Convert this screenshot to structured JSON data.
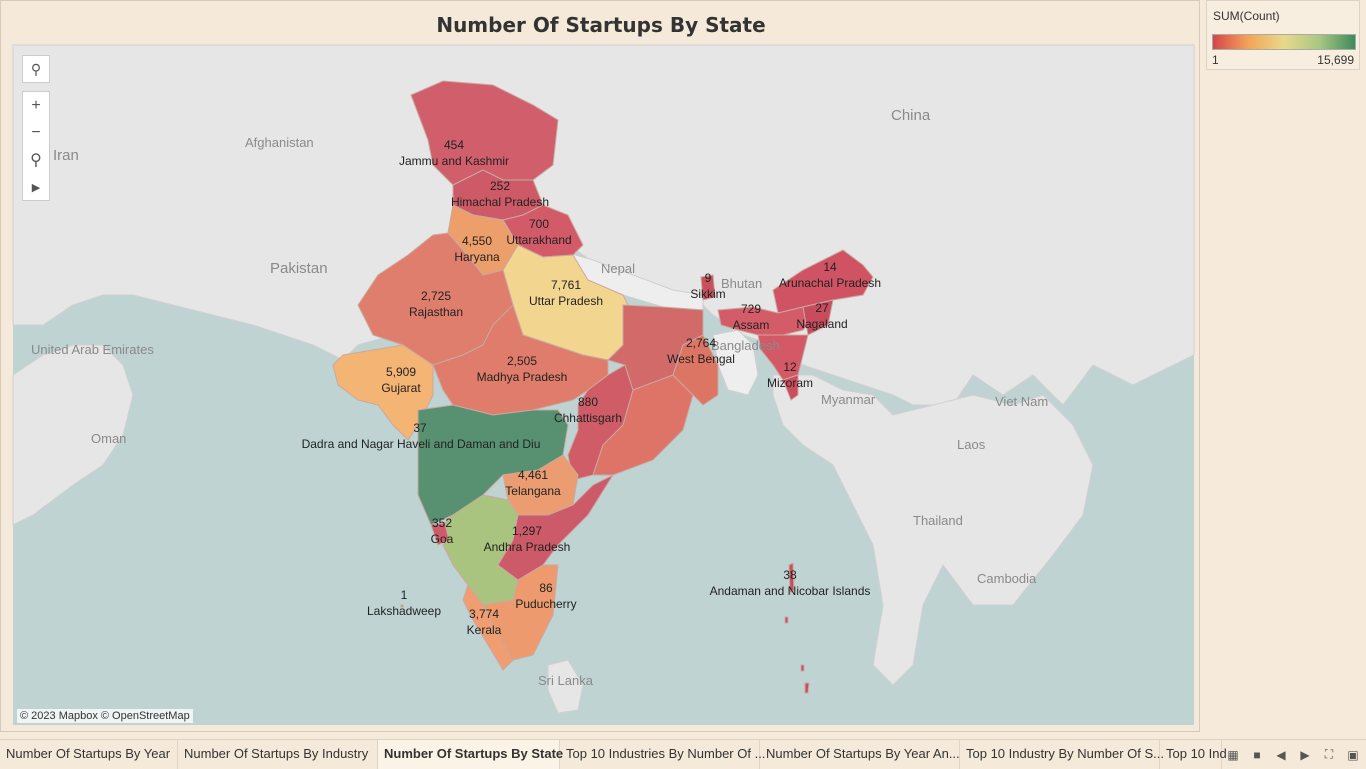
{
  "title": "Number Of Startups By State",
  "legend": {
    "title": "SUM(Count)",
    "min": "1",
    "max": "15,699",
    "colors": [
      "#d5464a",
      "#f4a459",
      "#e8d98b",
      "#a8c782",
      "#3f8a5b"
    ]
  },
  "attribution": "© 2023 Mapbox © OpenStreetMap",
  "map_controls": {
    "search_icon": "search-icon",
    "zoom_in": "+",
    "zoom_out": "−",
    "pin_icon": "pin-icon",
    "expand_icon": "play-icon"
  },
  "geo_labels": {
    "china": "China",
    "afghanistan": "Afghanistan",
    "iran": "Iran",
    "pakistan": "Pakistan",
    "nepal": "Nepal",
    "bhutan": "Bhutan",
    "bangladesh": "Bangladesh",
    "uae": "United Arab Emirates",
    "oman": "Oman",
    "myanmar": "Myanmar",
    "vietnam": "Viet Nam",
    "laos": "Laos",
    "thailand": "Thailand",
    "cambodia": "Cambodia",
    "srilanka": "Sri Lanka"
  },
  "states": [
    {
      "name": "Jammu and Kashmir",
      "value": "454"
    },
    {
      "name": "Himachal Pradesh",
      "value": "252"
    },
    {
      "name": "Uttarakhand",
      "value": "700"
    },
    {
      "name": "Haryana",
      "value": "4,550"
    },
    {
      "name": "Uttar Pradesh",
      "value": "7,761"
    },
    {
      "name": "Rajasthan",
      "value": "2,725"
    },
    {
      "name": "Gujarat",
      "value": "5,909"
    },
    {
      "name": "Madhya Pradesh",
      "value": "2,505"
    },
    {
      "name": "Chhattisgarh",
      "value": "880"
    },
    {
      "name": "Dadra and Nagar Haveli and Daman and Diu",
      "value": "37"
    },
    {
      "name": "Telangana",
      "value": "4,461"
    },
    {
      "name": "Goa",
      "value": "352"
    },
    {
      "name": "Andhra Pradesh",
      "value": "1,297"
    },
    {
      "name": "Puducherry",
      "value": "86"
    },
    {
      "name": "Kerala",
      "value": "3,774"
    },
    {
      "name": "Lakshadweep",
      "value": "1"
    },
    {
      "name": "West Bengal",
      "value": "2,764"
    },
    {
      "name": "Sikkim",
      "value": "9"
    },
    {
      "name": "Assam",
      "value": "729"
    },
    {
      "name": "Arunachal Pradesh",
      "value": "14"
    },
    {
      "name": "Nagaland",
      "value": "27"
    },
    {
      "name": "Mizoram",
      "value": "12"
    },
    {
      "name": "Andaman and Nicobar Islands",
      "value": "38"
    }
  ],
  "tabs": [
    "Number Of Startups By Year",
    "Number Of Startups By Industry",
    "Number Of Startups By State",
    "Top 10 Industries By Number Of ...",
    "Number Of Startups By Year An...",
    "Top 10 Industry By Number Of S...",
    "Top 10 Ind"
  ],
  "active_tab": "Number Of Startups By State"
}
